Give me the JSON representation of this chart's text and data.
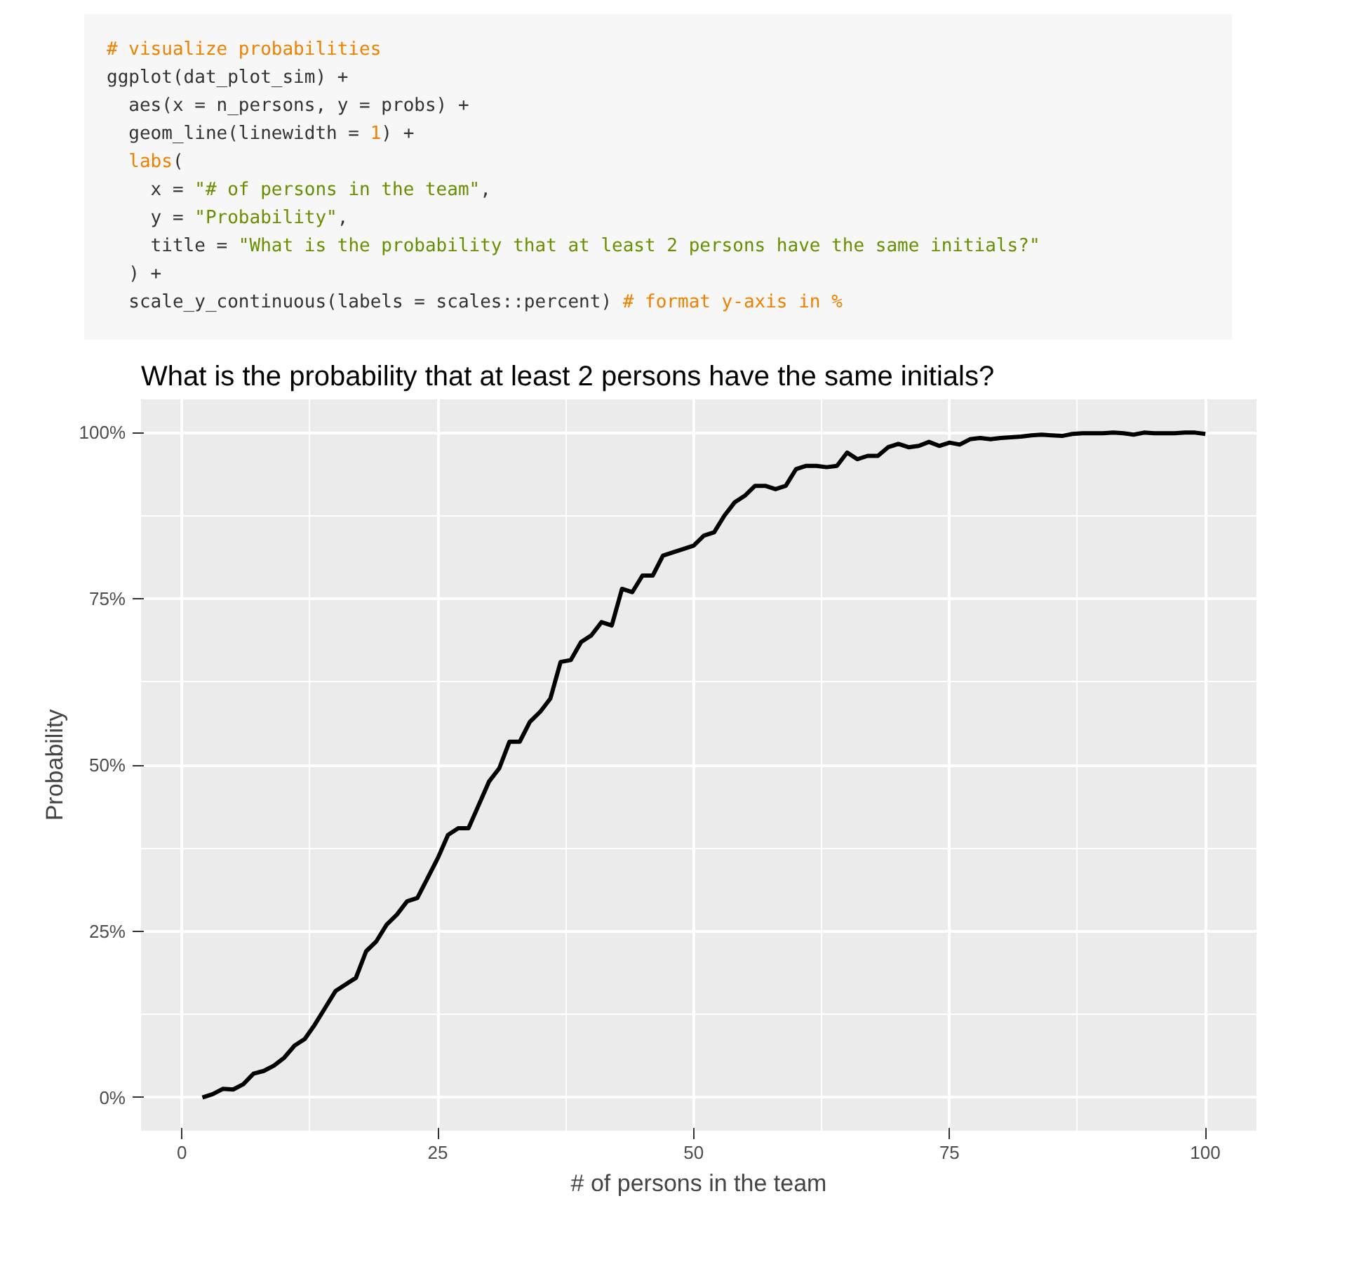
{
  "chart_data": {
    "type": "line",
    "title": "What is the probability that at least 2 persons have the same initials?",
    "xlabel": "# of persons in the team",
    "ylabel": "Probability",
    "annotations": [
      "# visualize probabilities\nggplot(dat_plot_sim) +\n  aes(x = n_persons, y = probs) +\n  geom_line(linewidth = 1) +\n  labs(\n    x = \"# of persons in the team\",\n    y = \"Probability\",\n    title = \"What is the probability that at least 2 persons have the same initials?\"\n  ) +\n  scale_y_continuous(labels = scales::percent) # format y-axis in %"
    ],
    "x": [
      2,
      3,
      4,
      5,
      6,
      7,
      8,
      9,
      10,
      11,
      12,
      13,
      14,
      15,
      16,
      17,
      18,
      19,
      20,
      21,
      22,
      23,
      24,
      25,
      26,
      27,
      28,
      29,
      30,
      31,
      32,
      33,
      34,
      35,
      36,
      37,
      38,
      39,
      40,
      41,
      42,
      43,
      44,
      45,
      46,
      47,
      48,
      49,
      50,
      51,
      52,
      53,
      54,
      55,
      56,
      57,
      58,
      59,
      60,
      61,
      62,
      63,
      64,
      65,
      66,
      67,
      68,
      69,
      70,
      71,
      72,
      73,
      74,
      75,
      76,
      77,
      78,
      79,
      80,
      81,
      82,
      83,
      84,
      85,
      86,
      87,
      88,
      89,
      90,
      91,
      92,
      93,
      94,
      95,
      96,
      97,
      98,
      99,
      100
    ],
    "series": [
      {
        "color": "#000000",
        "values": [
          0,
          0.5,
          1.3,
          1.2,
          2,
          3.6,
          4,
          4.8,
          6,
          7.8,
          8.8,
          11,
          13.5,
          16,
          17,
          18,
          22,
          23.5,
          26,
          27.5,
          29.5,
          30,
          33,
          36,
          39.5,
          40.5,
          40.5,
          44,
          47.5,
          49.5,
          53.5,
          53.5,
          56.5,
          58,
          60,
          65.5,
          65.8,
          68.5,
          69.5,
          71.5,
          71,
          76.5,
          76,
          78.5,
          78.5,
          81.5,
          82,
          82.5,
          83,
          84.5,
          85,
          87.5,
          89.5,
          90.5,
          92,
          92,
          91.5,
          92,
          94.5,
          95,
          95,
          94.8,
          95,
          97,
          96,
          96.5,
          96.5,
          97.8,
          98.3,
          97.8,
          98,
          98.6,
          98,
          98.5,
          98.2,
          99,
          99.2,
          99,
          99.2,
          99.3,
          99.4,
          99.6,
          99.7,
          99.6,
          99.5,
          99.8,
          99.9,
          99.9,
          99.9,
          100,
          99.9,
          99.7,
          100,
          99.9,
          99.9,
          99.9,
          100,
          100,
          99.8
        ]
      }
    ],
    "xlim": [
      -4,
      105
    ],
    "ylim": [
      -5,
      105
    ],
    "xticks": [
      0,
      25,
      50,
      75,
      100
    ],
    "yticks": [
      {
        "value": 0,
        "label": "0%"
      },
      {
        "value": 25,
        "label": "25%"
      },
      {
        "value": 50,
        "label": "50%"
      },
      {
        "value": 75,
        "label": "75%"
      },
      {
        "value": 100,
        "label": "100%"
      }
    ],
    "grid": true,
    "marker": "none",
    "line_style": "solid"
  }
}
